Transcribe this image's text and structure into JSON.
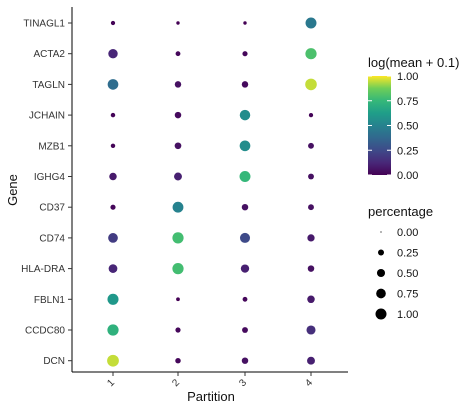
{
  "chart_data": {
    "type": "dot",
    "xlabel": "Partition",
    "ylabel": "Gene",
    "x_categories": [
      "1",
      "2",
      "3",
      "4"
    ],
    "y_categories": [
      "TINAGL1",
      "ACTA2",
      "TAGLN",
      "JCHAIN",
      "MZB1",
      "IGHG4",
      "CD37",
      "CD74",
      "HLA-DRA",
      "FBLN1",
      "CCDC80",
      "DCN"
    ],
    "color_legend": {
      "title": "log(mean + 0.1)",
      "ticks": [
        "1.00",
        "0.75",
        "0.50",
        "0.25",
        "0.00"
      ],
      "range": [
        0,
        1
      ]
    },
    "size_legend": {
      "title": "percentage",
      "ticks": [
        "0.00",
        "0.25",
        "0.50",
        "0.75",
        "1.00"
      ],
      "range": [
        0,
        1
      ]
    },
    "points": [
      {
        "gene": "TINAGL1",
        "partition": "1",
        "color": 0.01,
        "pct": 0.05
      },
      {
        "gene": "TINAGL1",
        "partition": "2",
        "color": 0.0,
        "pct": 0.02
      },
      {
        "gene": "TINAGL1",
        "partition": "3",
        "color": 0.0,
        "pct": 0.02
      },
      {
        "gene": "TINAGL1",
        "partition": "4",
        "color": 0.45,
        "pct": 0.8
      },
      {
        "gene": "ACTA2",
        "partition": "1",
        "color": 0.12,
        "pct": 0.55
      },
      {
        "gene": "ACTA2",
        "partition": "2",
        "color": 0.02,
        "pct": 0.08
      },
      {
        "gene": "ACTA2",
        "partition": "3",
        "color": 0.02,
        "pct": 0.1
      },
      {
        "gene": "ACTA2",
        "partition": "4",
        "color": 0.8,
        "pct": 0.85
      },
      {
        "gene": "TAGLN",
        "partition": "1",
        "color": 0.4,
        "pct": 0.75
      },
      {
        "gene": "TAGLN",
        "partition": "2",
        "color": 0.05,
        "pct": 0.2
      },
      {
        "gene": "TAGLN",
        "partition": "3",
        "color": 0.03,
        "pct": 0.2
      },
      {
        "gene": "TAGLN",
        "partition": "4",
        "color": 0.95,
        "pct": 0.92
      },
      {
        "gene": "JCHAIN",
        "partition": "1",
        "color": 0.01,
        "pct": 0.06
      },
      {
        "gene": "JCHAIN",
        "partition": "2",
        "color": 0.03,
        "pct": 0.2
      },
      {
        "gene": "JCHAIN",
        "partition": "3",
        "color": 0.55,
        "pct": 0.72
      },
      {
        "gene": "JCHAIN",
        "partition": "4",
        "color": 0.01,
        "pct": 0.05
      },
      {
        "gene": "MZB1",
        "partition": "1",
        "color": 0.01,
        "pct": 0.06
      },
      {
        "gene": "MZB1",
        "partition": "2",
        "color": 0.05,
        "pct": 0.22
      },
      {
        "gene": "MZB1",
        "partition": "3",
        "color": 0.55,
        "pct": 0.75
      },
      {
        "gene": "MZB1",
        "partition": "4",
        "color": 0.05,
        "pct": 0.15
      },
      {
        "gene": "IGHG4",
        "partition": "1",
        "color": 0.08,
        "pct": 0.3
      },
      {
        "gene": "IGHG4",
        "partition": "2",
        "color": 0.1,
        "pct": 0.35
      },
      {
        "gene": "IGHG4",
        "partition": "3",
        "color": 0.75,
        "pct": 0.8
      },
      {
        "gene": "IGHG4",
        "partition": "4",
        "color": 0.05,
        "pct": 0.15
      },
      {
        "gene": "CD37",
        "partition": "1",
        "color": 0.02,
        "pct": 0.1
      },
      {
        "gene": "CD37",
        "partition": "2",
        "color": 0.5,
        "pct": 0.78
      },
      {
        "gene": "CD37",
        "partition": "3",
        "color": 0.05,
        "pct": 0.2
      },
      {
        "gene": "CD37",
        "partition": "4",
        "color": 0.05,
        "pct": 0.15
      },
      {
        "gene": "CD74",
        "partition": "1",
        "color": 0.2,
        "pct": 0.6
      },
      {
        "gene": "CD74",
        "partition": "2",
        "color": 0.78,
        "pct": 0.85
      },
      {
        "gene": "CD74",
        "partition": "3",
        "color": 0.25,
        "pct": 0.65
      },
      {
        "gene": "CD74",
        "partition": "4",
        "color": 0.08,
        "pct": 0.28
      },
      {
        "gene": "HLA-DRA",
        "partition": "1",
        "color": 0.12,
        "pct": 0.45
      },
      {
        "gene": "HLA-DRA",
        "partition": "2",
        "color": 0.78,
        "pct": 0.85
      },
      {
        "gene": "HLA-DRA",
        "partition": "3",
        "color": 0.1,
        "pct": 0.4
      },
      {
        "gene": "HLA-DRA",
        "partition": "4",
        "color": 0.05,
        "pct": 0.2
      },
      {
        "gene": "FBLN1",
        "partition": "1",
        "color": 0.6,
        "pct": 0.82
      },
      {
        "gene": "FBLN1",
        "partition": "2",
        "color": 0.0,
        "pct": 0.03
      },
      {
        "gene": "FBLN1",
        "partition": "3",
        "color": 0.02,
        "pct": 0.08
      },
      {
        "gene": "FBLN1",
        "partition": "4",
        "color": 0.08,
        "pct": 0.3
      },
      {
        "gene": "CCDC80",
        "partition": "1",
        "color": 0.72,
        "pct": 0.85
      },
      {
        "gene": "CCDC80",
        "partition": "2",
        "color": 0.02,
        "pct": 0.1
      },
      {
        "gene": "CCDC80",
        "partition": "3",
        "color": 0.03,
        "pct": 0.15
      },
      {
        "gene": "CCDC80",
        "partition": "4",
        "color": 0.15,
        "pct": 0.5
      },
      {
        "gene": "DCN",
        "partition": "1",
        "color": 0.95,
        "pct": 0.95
      },
      {
        "gene": "DCN",
        "partition": "2",
        "color": 0.02,
        "pct": 0.12
      },
      {
        "gene": "DCN",
        "partition": "3",
        "color": 0.05,
        "pct": 0.2
      },
      {
        "gene": "DCN",
        "partition": "4",
        "color": 0.1,
        "pct": 0.35
      }
    ]
  }
}
